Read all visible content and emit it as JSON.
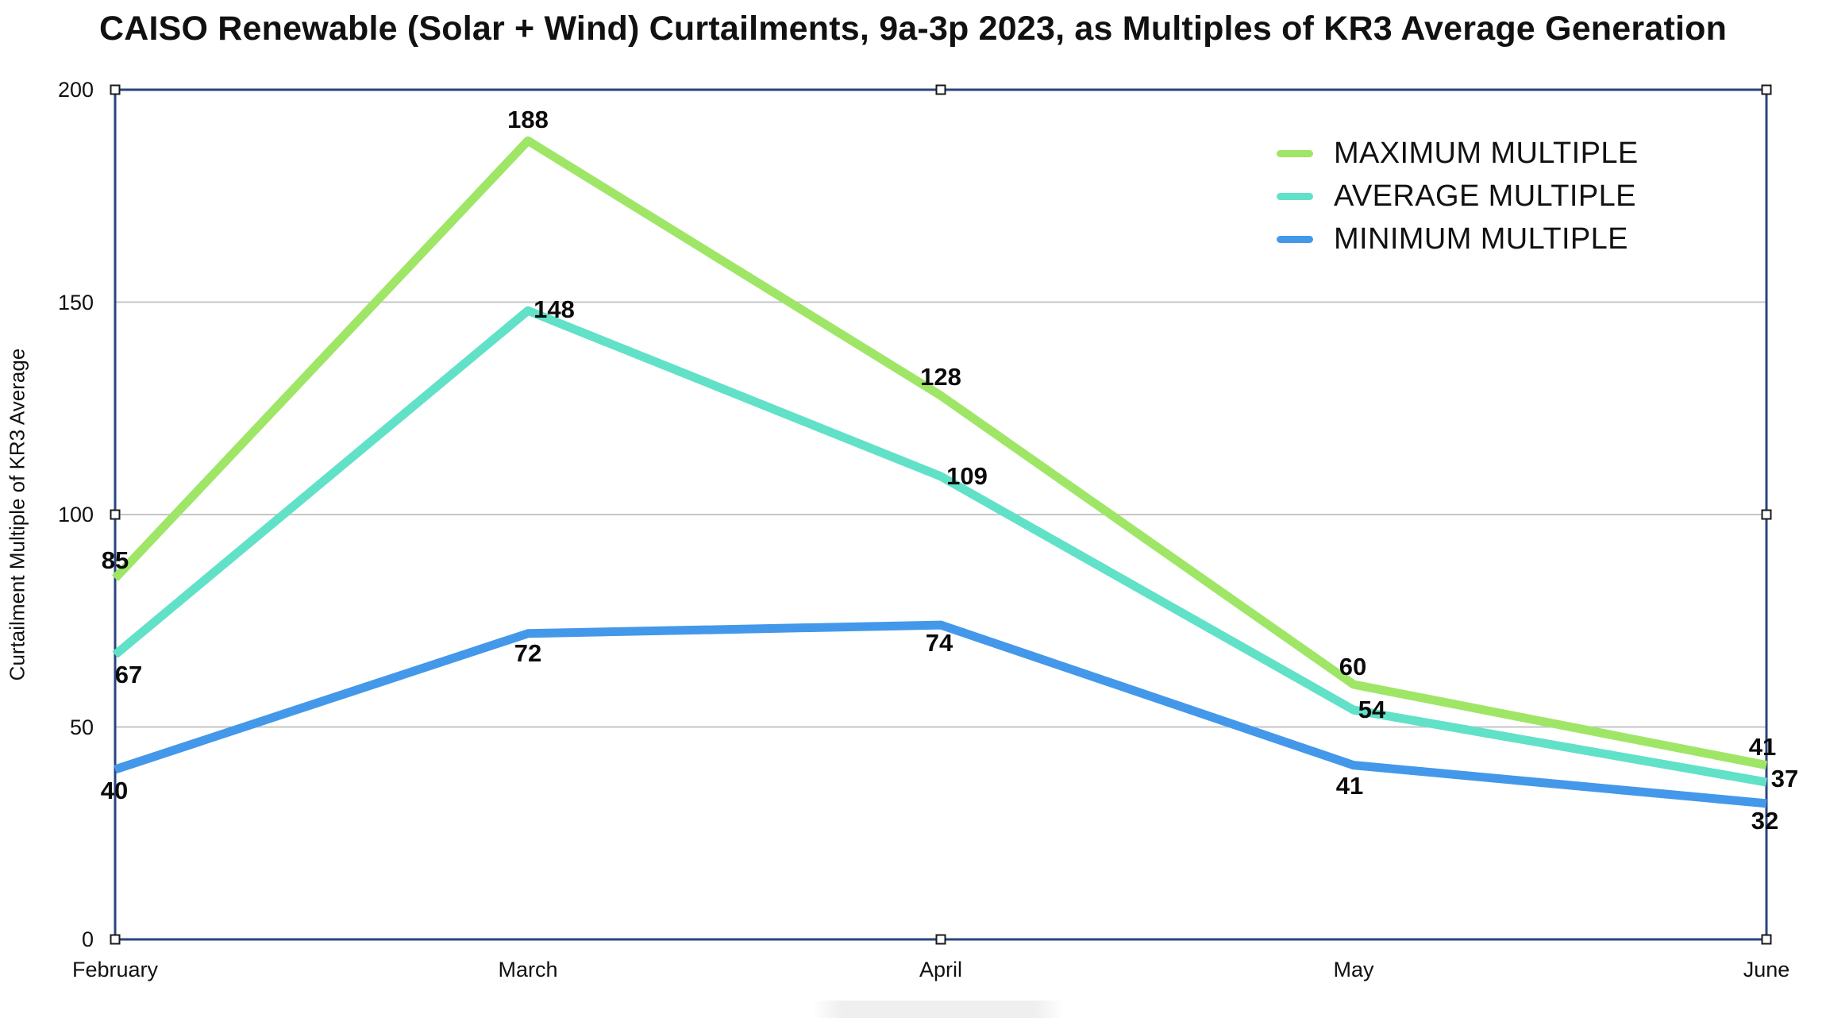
{
  "chart_data": {
    "type": "line",
    "title": "CAISO Renewable (Solar + Wind) Curtailments, 9a-3p 2023, as Multiples of KR3 Average Generation",
    "ylabel": "Curtailment Multiple of KR3 Average",
    "xlabel": "",
    "categories": [
      "February",
      "March",
      "April",
      "May",
      "June"
    ],
    "series": [
      {
        "name": "MAXIMUM MULTIPLE",
        "color": "#9FE667",
        "values": [
          85,
          188,
          128,
          60,
          41
        ]
      },
      {
        "name": "AVERAGE MULTIPLE",
        "color": "#61E1C7",
        "values": [
          67,
          148,
          109,
          54,
          37
        ]
      },
      {
        "name": "MINIMUM MULTIPLE",
        "color": "#4398EA",
        "values": [
          40,
          72,
          74,
          41,
          32
        ]
      }
    ],
    "ylim": [
      0,
      200
    ],
    "yticks": [
      0,
      50,
      100,
      150,
      200
    ],
    "grid": "horizontal-only",
    "legend_position": "top-right",
    "data_labels": true,
    "label_offsets": [
      [
        [
          0,
          -22
        ],
        [
          0,
          -26
        ],
        [
          0,
          -23
        ],
        [
          -1,
          -22
        ],
        [
          -5,
          -23
        ]
      ],
      [
        [
          17,
          25
        ],
        [
          33,
          -1
        ],
        [
          33,
          0
        ],
        [
          23,
          0
        ],
        [
          23,
          -4
        ]
      ],
      [
        [
          -1,
          27
        ],
        [
          0,
          25
        ],
        [
          -2,
          23
        ],
        [
          -5,
          26
        ],
        [
          -2,
          22
        ]
      ]
    ],
    "style": {
      "frame_color": "#28457C",
      "gridline_color": "#C6C6C6",
      "handle_border": "#1A1A1A",
      "text_color": "#111111",
      "background": "#FFFFFF"
    }
  }
}
